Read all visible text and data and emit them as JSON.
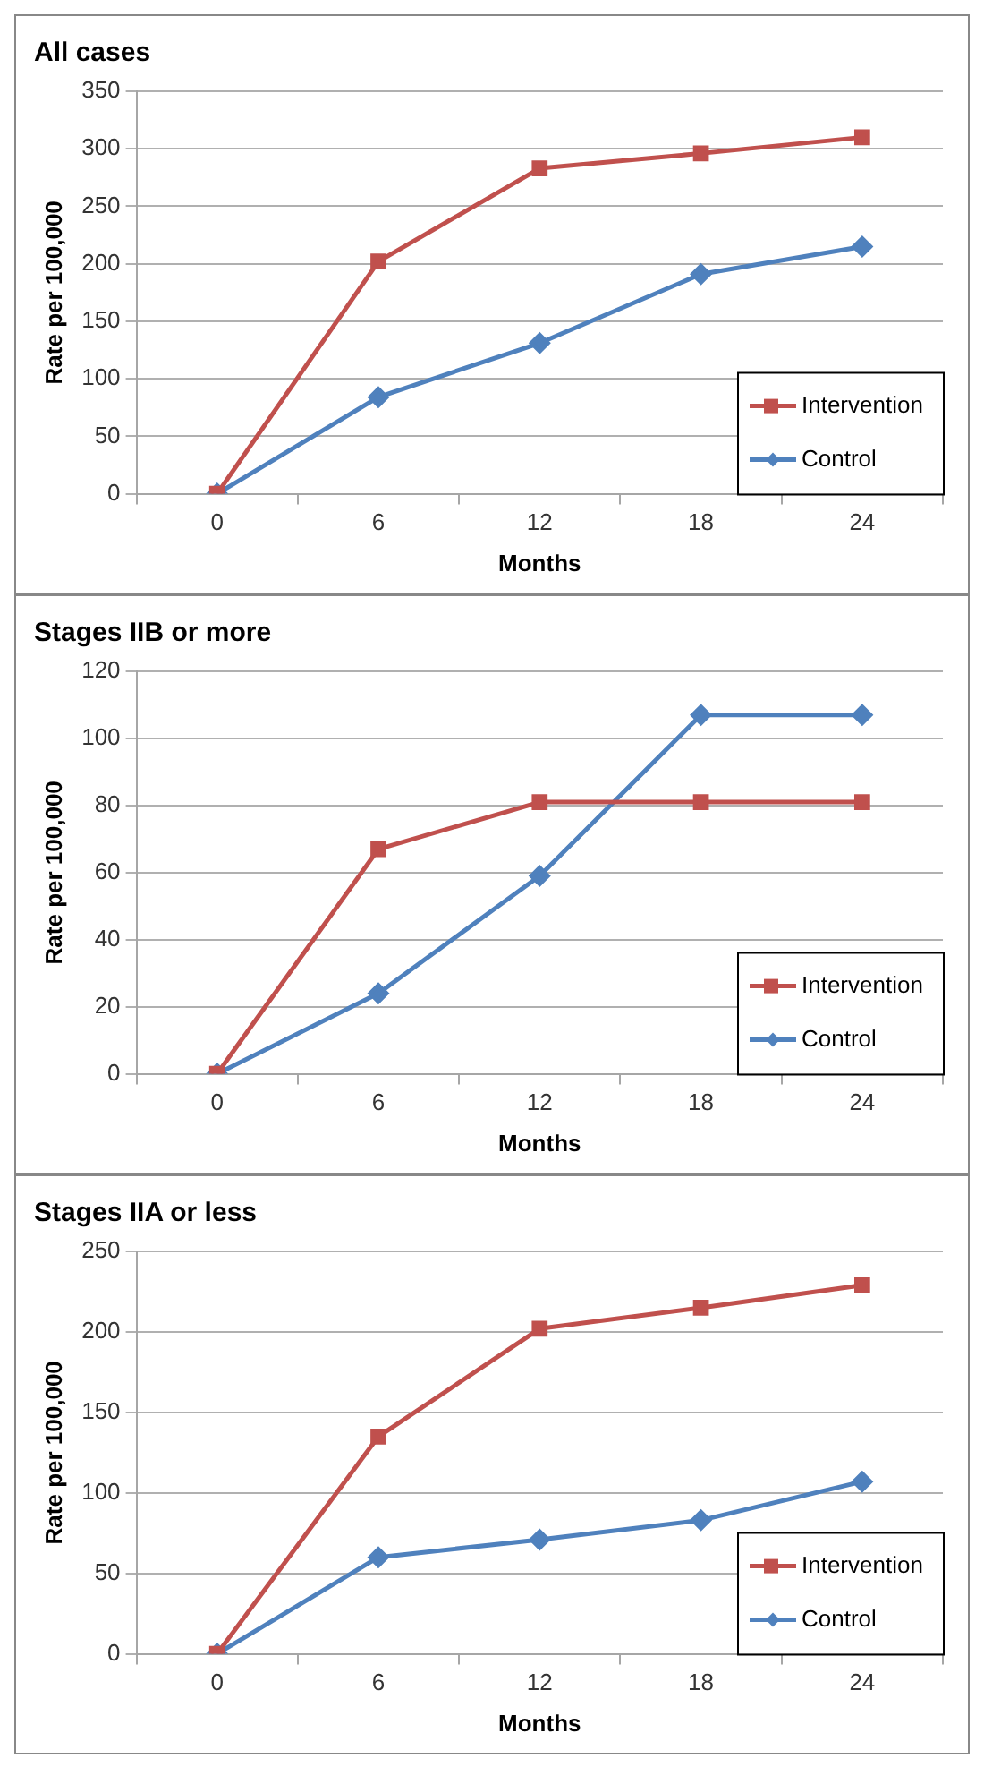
{
  "chart_data": [
    {
      "type": "line",
      "title": "All cases",
      "xlabel": "Months",
      "ylabel": "Rate per 100,000",
      "categories": [
        "0",
        "6",
        "12",
        "18",
        "24"
      ],
      "ylim": [
        0,
        350
      ],
      "yticks": [
        0,
        50,
        100,
        150,
        200,
        250,
        300,
        350
      ],
      "grid": "y",
      "legend": "bottom right",
      "line_style": "solid",
      "series": [
        {
          "name": "Intervention",
          "color": "#c0504d",
          "marker": "square",
          "values": [
            0,
            202,
            283,
            296,
            310
          ]
        },
        {
          "name": "Control",
          "color": "#4f81bd",
          "marker": "diamond",
          "values": [
            0,
            84,
            131,
            191,
            215
          ]
        }
      ]
    },
    {
      "type": "line",
      "title": "Stages IIB or more",
      "xlabel": "Months",
      "ylabel": "Rate per 100,000",
      "categories": [
        "0",
        "6",
        "12",
        "18",
        "24"
      ],
      "ylim": [
        0,
        120
      ],
      "yticks": [
        0,
        20,
        40,
        60,
        80,
        100,
        120
      ],
      "grid": "y",
      "legend": "bottom right",
      "line_style": "solid",
      "series": [
        {
          "name": "Intervention",
          "color": "#c0504d",
          "marker": "square",
          "values": [
            0,
            67,
            81,
            81,
            81
          ]
        },
        {
          "name": "Control",
          "color": "#4f81bd",
          "marker": "diamond",
          "values": [
            0,
            24,
            59,
            107,
            107
          ]
        }
      ]
    },
    {
      "type": "line",
      "title": "Stages IIA or less",
      "xlabel": "Months",
      "ylabel": "Rate per 100,000",
      "categories": [
        "0",
        "6",
        "12",
        "18",
        "24"
      ],
      "ylim": [
        0,
        250
      ],
      "yticks": [
        0,
        50,
        100,
        150,
        200,
        250
      ],
      "grid": "y",
      "legend": "bottom right",
      "line_style": "solid",
      "series": [
        {
          "name": "Intervention",
          "color": "#c0504d",
          "marker": "square",
          "values": [
            0,
            135,
            202,
            215,
            229
          ]
        },
        {
          "name": "Control",
          "color": "#4f81bd",
          "marker": "diamond",
          "values": [
            0,
            60,
            71,
            83,
            107
          ]
        }
      ]
    }
  ]
}
